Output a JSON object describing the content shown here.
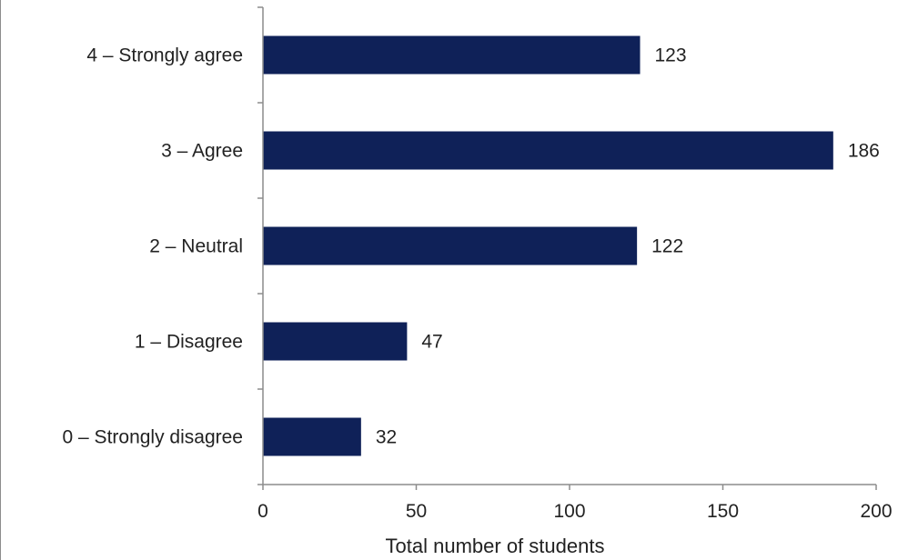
{
  "chart_data": {
    "type": "bar",
    "orientation": "horizontal",
    "title": "",
    "xlabel": "Total number of students",
    "ylabel": "",
    "categories": [
      "4 – Strongly agree",
      "3 – Agree",
      "2 – Neutral",
      "1 – Disagree",
      "0 – Strongly disagree"
    ],
    "values": [
      123,
      186,
      122,
      47,
      32
    ],
    "xlim": [
      0,
      200
    ],
    "xticks": [
      0,
      50,
      100,
      150,
      200
    ],
    "xtick_labels": [
      "0",
      "50",
      "100",
      "150",
      "200"
    ],
    "grid": false,
    "legend": "none",
    "bar_color": "#0f2158",
    "axis_color": "#8c8c8c"
  }
}
